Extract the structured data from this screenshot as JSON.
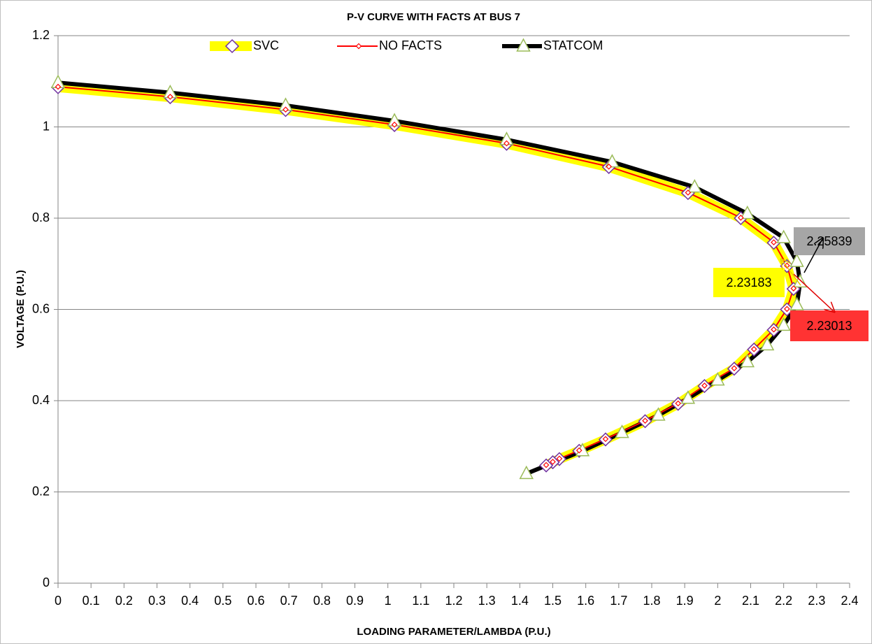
{
  "chart_data": {
    "type": "line",
    "title": "P-V CURVE WITH FACTS AT BUS 7",
    "x_label": "LOADING PARAMETER/LAMBDA (P.U.)",
    "y_label": "VOLTAGE (P.U.)",
    "xlim": [
      0,
      2.4
    ],
    "xticks": [
      0,
      0.1,
      0.2,
      0.3,
      0.4,
      0.5,
      0.6,
      0.7,
      0.8,
      0.9,
      1,
      1.1,
      1.2,
      1.3,
      1.4,
      1.5,
      1.6,
      1.7,
      1.8,
      1.9,
      2,
      2.1,
      2.2,
      2.3,
      2.4
    ],
    "ylim": [
      0,
      1.2
    ],
    "yticks": [
      0,
      0.2,
      0.4,
      0.6,
      0.8,
      1,
      1.2
    ],
    "grid": true,
    "series": [
      {
        "name": "SVC",
        "color": "#ffff00",
        "marker_color": "#7030a0",
        "x": [
          0,
          0.34,
          0.69,
          1.02,
          1.36,
          1.67,
          1.91,
          2.07,
          2.17,
          2.21,
          2.23,
          2.21,
          2.17,
          2.11,
          2.05,
          1.96,
          1.88,
          1.78,
          1.66,
          1.58,
          1.52,
          1.5,
          1.48
        ],
        "values": [
          1.087,
          1.065,
          1.037,
          1.004,
          0.963,
          0.912,
          0.855,
          0.8,
          0.746,
          0.695,
          0.645,
          0.6,
          0.555,
          0.512,
          0.47,
          0.432,
          0.393,
          0.355,
          0.315,
          0.29,
          0.272,
          0.265,
          0.258
        ]
      },
      {
        "name": "NO FACTS",
        "color": "#ff0000",
        "marker_color": "#ff0000",
        "x": [
          0,
          0.34,
          0.69,
          1.02,
          1.36,
          1.67,
          1.91,
          2.07,
          2.17,
          2.21,
          2.23,
          2.21,
          2.17,
          2.11,
          2.05,
          1.96,
          1.88,
          1.78,
          1.66,
          1.58,
          1.52,
          1.5,
          1.48
        ],
        "values": [
          1.088,
          1.066,
          1.038,
          1.005,
          0.964,
          0.913,
          0.856,
          0.801,
          0.747,
          0.696,
          0.646,
          0.601,
          0.556,
          0.513,
          0.471,
          0.433,
          0.394,
          0.356,
          0.316,
          0.291,
          0.273,
          0.266,
          0.259
        ]
      },
      {
        "name": "STATCOM",
        "color": "#000000",
        "marker_color": "#9bbb59",
        "x": [
          0,
          0.34,
          0.69,
          1.02,
          1.36,
          1.68,
          1.93,
          2.09,
          2.2,
          2.24,
          2.25,
          2.24,
          2.2,
          2.15,
          2.09,
          2.0,
          1.91,
          1.82,
          1.71,
          1.59,
          1.42
        ],
        "values": [
          1.097,
          1.075,
          1.047,
          1.013,
          0.972,
          0.923,
          0.868,
          0.81,
          0.757,
          0.705,
          0.66,
          0.61,
          0.565,
          0.522,
          0.485,
          0.445,
          0.405,
          0.368,
          0.33,
          0.29,
          0.24
        ]
      }
    ],
    "annotations": [
      {
        "text": "2.25839",
        "color": "#a6a6a6"
      },
      {
        "text": "2.23183",
        "color": "#ffff00"
      },
      {
        "text": "2.23013",
        "color": "#ff3333"
      }
    ]
  }
}
